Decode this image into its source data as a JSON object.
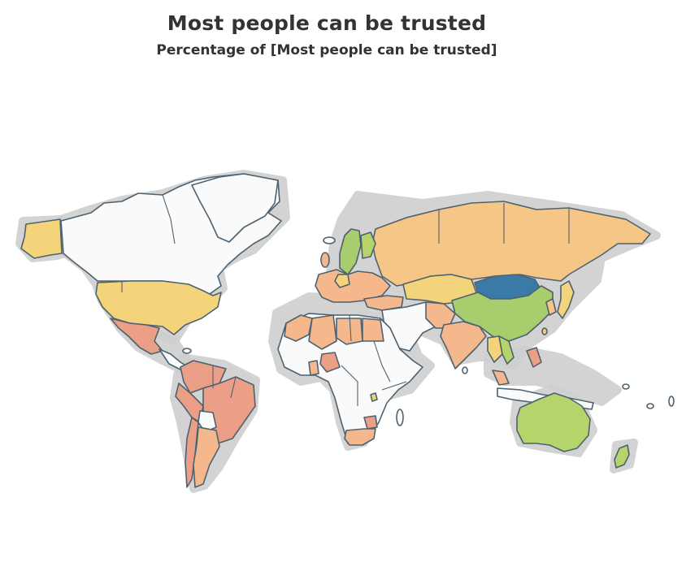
{
  "header": {
    "title": "Most people can be trusted",
    "subtitle": "Percentage of [Most people can be trusted]"
  },
  "legend_colors": {
    "no_data": "#fafafa",
    "lowest": "#eb9f87",
    "low": "#f4b88c",
    "mid_low": "#f5c685",
    "mid": "#f3d47a",
    "mid_high": "#b5d56a",
    "high": "#a8cd6c",
    "highest": "#3b7aa7",
    "border": "#4d6270",
    "halo": "#cfcfcf"
  },
  "regions": [
    {
      "name": "Canada & Greenland",
      "color_key": "no_data"
    },
    {
      "name": "Alaska",
      "color_key": "mid"
    },
    {
      "name": "United States",
      "color_key": "mid"
    },
    {
      "name": "Mexico",
      "color_key": "lowest"
    },
    {
      "name": "Central America",
      "color_key": "no_data"
    },
    {
      "name": "Colombia",
      "color_key": "lowest"
    },
    {
      "name": "Venezuela",
      "color_key": "lowest"
    },
    {
      "name": "Peru",
      "color_key": "lowest"
    },
    {
      "name": "Brazil",
      "color_key": "lowest"
    },
    {
      "name": "Bolivia",
      "color_key": "no_data"
    },
    {
      "name": "Chile",
      "color_key": "lowest"
    },
    {
      "name": "Argentina",
      "color_key": "low"
    },
    {
      "name": "Uruguay",
      "color_key": "low"
    },
    {
      "name": "Russia",
      "color_key": "mid_low"
    },
    {
      "name": "Sweden",
      "color_key": "high"
    },
    {
      "name": "Norway",
      "color_key": "high"
    },
    {
      "name": "Finland",
      "color_key": "mid_high"
    },
    {
      "name": "Germany",
      "color_key": "mid"
    },
    {
      "name": "Spain",
      "color_key": "low"
    },
    {
      "name": "Kazakhstan",
      "color_key": "mid"
    },
    {
      "name": "Mongolia",
      "color_key": "highest"
    },
    {
      "name": "China",
      "color_key": "mid_high"
    },
    {
      "name": "India",
      "color_key": "low"
    },
    {
      "name": "Pakistan",
      "color_key": "mid_low"
    },
    {
      "name": "Iran",
      "color_key": "no_data"
    },
    {
      "name": "Saudi Arabia",
      "color_key": "no_data"
    },
    {
      "name": "Turkey",
      "color_key": "low"
    },
    {
      "name": "Japan",
      "color_key": "mid"
    },
    {
      "name": "South Korea",
      "color_key": "mid_low"
    },
    {
      "name": "Thailand",
      "color_key": "mid"
    },
    {
      "name": "Vietnam",
      "color_key": "mid_high"
    },
    {
      "name": "Malaysia",
      "color_key": "low"
    },
    {
      "name": "Indonesia",
      "color_key": "no_data"
    },
    {
      "name": "Philippines",
      "color_key": "lowest"
    },
    {
      "name": "Australia",
      "color_key": "mid_high"
    },
    {
      "name": "New Zealand",
      "color_key": "mid_high"
    },
    {
      "name": "Morocco",
      "color_key": "low"
    },
    {
      "name": "Algeria",
      "color_key": "low"
    },
    {
      "name": "Libya",
      "color_key": "low"
    },
    {
      "name": "Egypt",
      "color_key": "low"
    },
    {
      "name": "Nigeria",
      "color_key": "lowest"
    },
    {
      "name": "Ghana",
      "color_key": "low"
    },
    {
      "name": "Rwanda",
      "color_key": "mid"
    },
    {
      "name": "Zimbabwe",
      "color_key": "lowest"
    },
    {
      "name": "South Africa",
      "color_key": "low"
    },
    {
      "name": "Rest of Africa",
      "color_key": "no_data"
    }
  ]
}
